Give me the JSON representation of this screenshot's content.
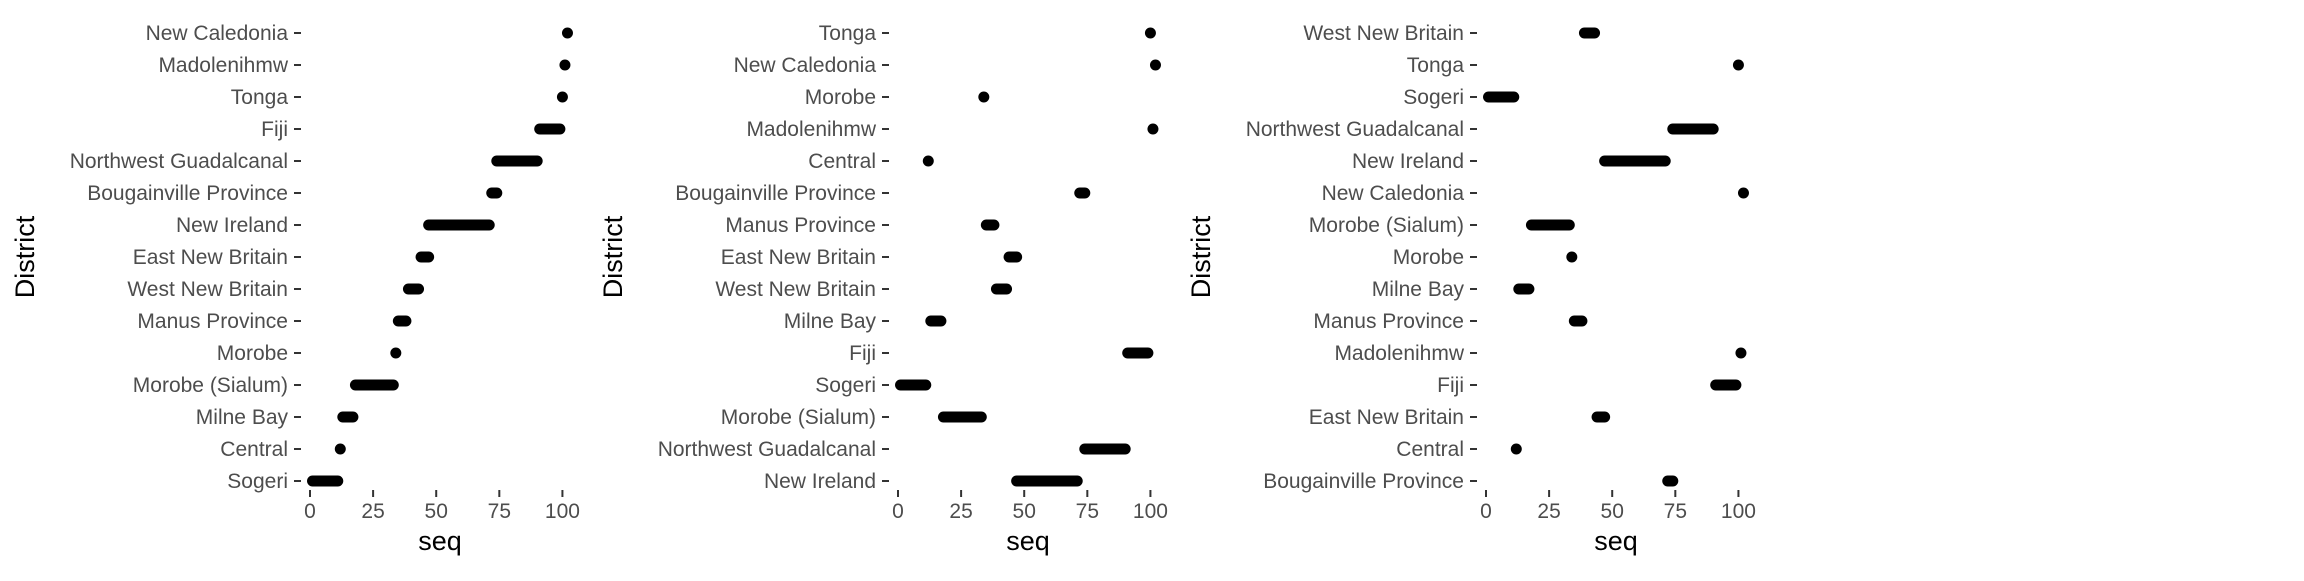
{
  "chart_data": [
    {
      "type": "scatter",
      "xlabel": "seq",
      "ylabel": "District",
      "xlim": [
        0,
        103
      ],
      "xticks": [
        "0",
        "25",
        "50",
        "75",
        "100"
      ],
      "categories": [
        "New Caledonia",
        "Madolenihmw",
        "Tonga",
        "Fiji",
        "Northwest Guadalcanal",
        "Bougainville Province",
        "New Ireland",
        "East New Britain",
        "West New Britain",
        "Manus Province",
        "Morobe",
        "Morobe (Sialum)",
        "Milne Bay",
        "Central",
        "Sogeri"
      ],
      "ranges": [
        [
          102,
          102
        ],
        [
          101,
          101
        ],
        [
          100,
          100
        ],
        [
          91,
          99
        ],
        [
          74,
          90
        ],
        [
          72,
          74
        ],
        [
          47,
          71
        ],
        [
          44,
          47
        ],
        [
          39,
          43
        ],
        [
          35,
          38
        ],
        [
          34,
          34
        ],
        [
          18,
          33
        ],
        [
          13,
          17
        ],
        [
          12,
          12
        ],
        [
          1,
          11
        ]
      ]
    },
    {
      "type": "scatter",
      "xlabel": "seq",
      "ylabel": "District",
      "xlim": [
        0,
        103
      ],
      "xticks": [
        "0",
        "25",
        "50",
        "75",
        "100"
      ],
      "categories": [
        "Tonga",
        "New Caledonia",
        "Morobe",
        "Madolenihmw",
        "Central",
        "Bougainville Province",
        "Manus Province",
        "East New Britain",
        "West New Britain",
        "Milne Bay",
        "Fiji",
        "Sogeri",
        "Morobe (Sialum)",
        "Northwest Guadalcanal",
        "New Ireland"
      ],
      "ranges": [
        [
          100,
          100
        ],
        [
          102,
          102
        ],
        [
          34,
          34
        ],
        [
          101,
          101
        ],
        [
          12,
          12
        ],
        [
          72,
          74
        ],
        [
          35,
          38
        ],
        [
          44,
          47
        ],
        [
          39,
          43
        ],
        [
          13,
          17
        ],
        [
          91,
          99
        ],
        [
          1,
          11
        ],
        [
          18,
          33
        ],
        [
          74,
          90
        ],
        [
          47,
          71
        ]
      ]
    },
    {
      "type": "scatter",
      "xlabel": "seq",
      "ylabel": "District",
      "xlim": [
        0,
        103
      ],
      "xticks": [
        "0",
        "25",
        "50",
        "75",
        "100"
      ],
      "categories": [
        "West New Britain",
        "Tonga",
        "Sogeri",
        "Northwest Guadalcanal",
        "New Ireland",
        "New Caledonia",
        "Morobe (Sialum)",
        "Morobe",
        "Milne Bay",
        "Manus Province",
        "Madolenihmw",
        "Fiji",
        "East New Britain",
        "Central",
        "Bougainville Province"
      ],
      "ranges": [
        [
          39,
          43
        ],
        [
          100,
          100
        ],
        [
          1,
          11
        ],
        [
          74,
          90
        ],
        [
          47,
          71
        ],
        [
          102,
          102
        ],
        [
          18,
          33
        ],
        [
          34,
          34
        ],
        [
          13,
          17
        ],
        [
          35,
          38
        ],
        [
          101,
          101
        ],
        [
          91,
          99
        ],
        [
          44,
          47
        ],
        [
          12,
          12
        ],
        [
          72,
          74
        ]
      ]
    }
  ]
}
